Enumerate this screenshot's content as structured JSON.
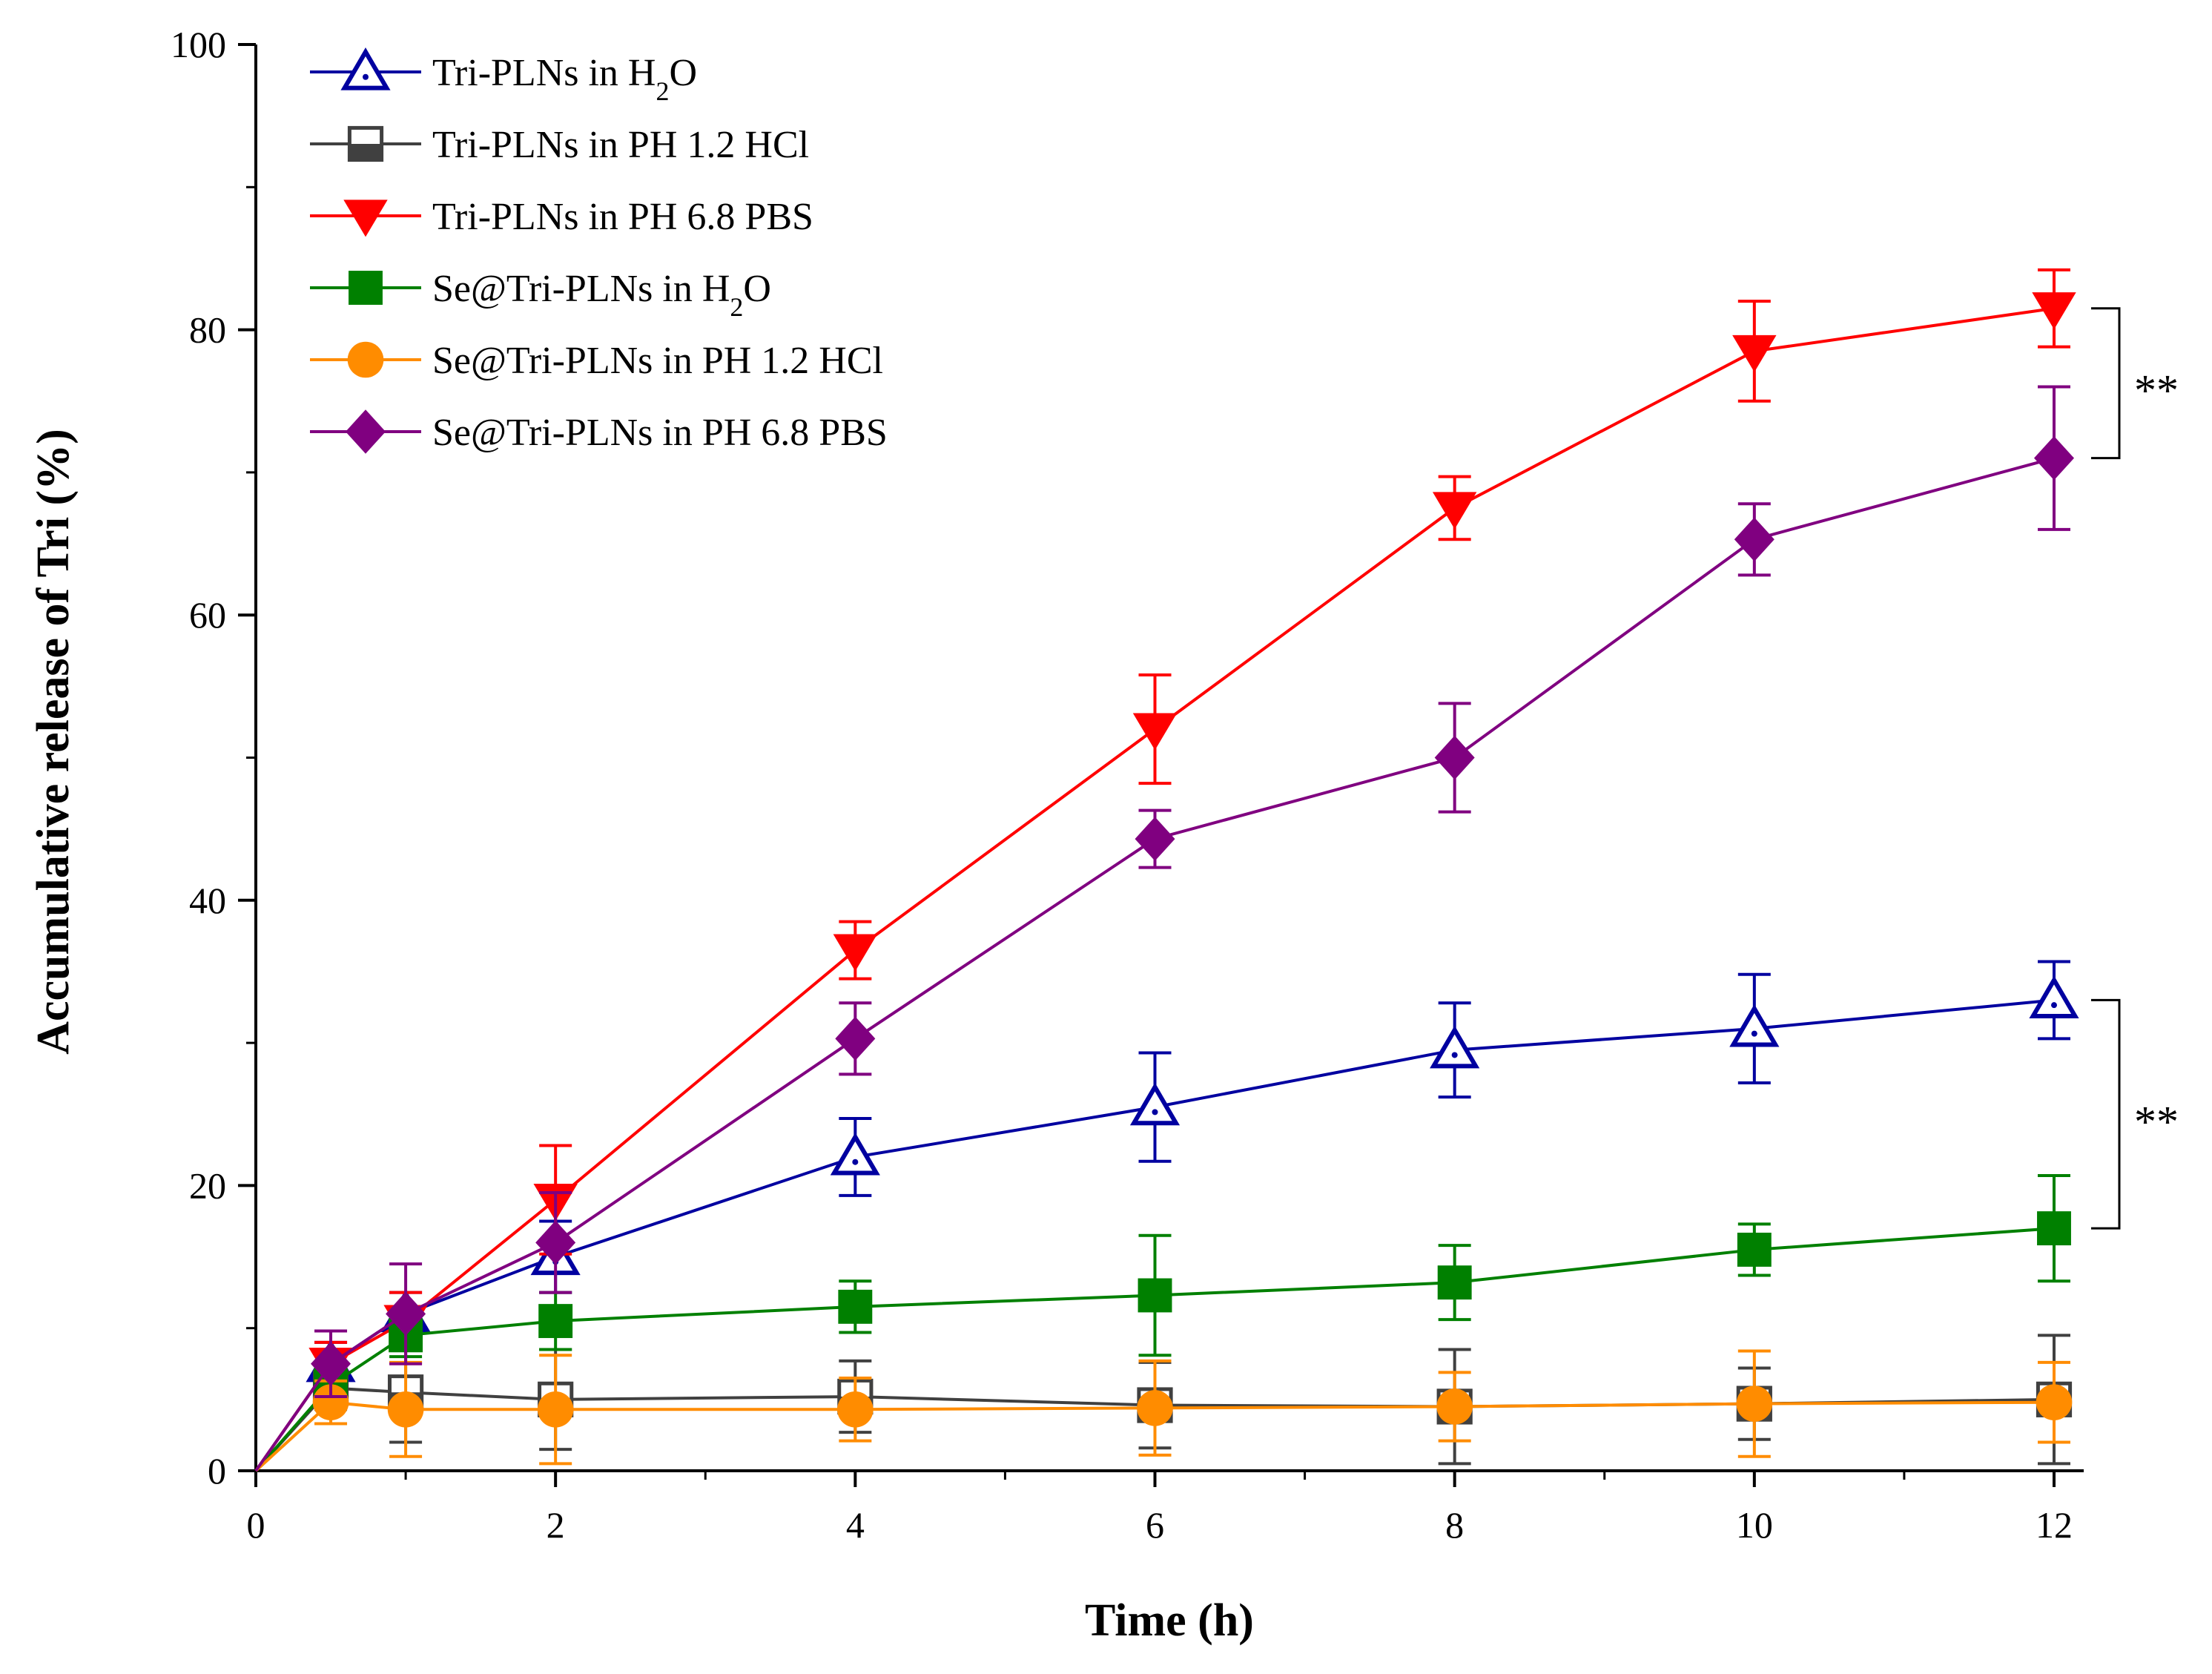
{
  "chart_data": {
    "type": "line",
    "title": "",
    "xlabel": "Time (h)",
    "ylabel": "Accumulative release of Tri (%)",
    "xlim": [
      0,
      12.2
    ],
    "ylim": [
      0,
      100
    ],
    "x_ticks": [
      0,
      2,
      4,
      6,
      8,
      10,
      12
    ],
    "x_tick_labels": [
      "0",
      "2",
      "4",
      "6",
      "8",
      "10",
      "12"
    ],
    "y_ticks": [
      0,
      20,
      40,
      60,
      80,
      100
    ],
    "y_tick_labels": [
      "0",
      "20",
      "40",
      "60",
      "80",
      "100"
    ],
    "grid": false,
    "legend_position": "top-left",
    "x": [
      0,
      0.5,
      1,
      2,
      4,
      6,
      8,
      10,
      12
    ],
    "series": [
      {
        "name": "Tri-PLNs in H₂O",
        "legend_parts": [
          "Tri-PLNs in H",
          "2",
          "O"
        ],
        "color": "#0000a0",
        "marker": "triangle-up-open",
        "values": [
          0,
          7.5,
          11,
          15,
          22,
          25.5,
          29.5,
          31,
          33
        ],
        "errors": [
          0,
          1.5,
          1.5,
          2.5,
          2.7,
          3.8,
          3.3,
          3.8,
          2.7
        ]
      },
      {
        "name": "Tri-PLNs in PH 1.2 HCl",
        "legend_parts": [
          "Tri-PLNs in PH 1.2 HCl",
          "",
          ""
        ],
        "color": "#404040",
        "marker": "square-half",
        "values": [
          0,
          5.8,
          5.5,
          5,
          5.2,
          4.6,
          4.5,
          4.7,
          5
        ],
        "errors": [
          0,
          1.5,
          3.5,
          3.5,
          2.5,
          3.0,
          4.0,
          2.5,
          4.5
        ]
      },
      {
        "name": "Tri-PLNs in PH 6.8 PBS",
        "legend_parts": [
          "Tri-PLNs in PH 6.8 PBS",
          "",
          ""
        ],
        "color": "#ff0000",
        "marker": "triangle-down",
        "values": [
          0,
          7.5,
          10.5,
          19,
          36.5,
          52,
          67.5,
          78.5,
          81.5
        ],
        "errors": [
          0,
          1.5,
          2.0,
          3.8,
          2.0,
          3.8,
          2.2,
          3.5,
          2.7
        ]
      },
      {
        "name": "Se@Tri-PLNs in H₂O",
        "legend_parts": [
          "Se@Tri-PLNs in H",
          "2",
          "O"
        ],
        "color": "#008000",
        "marker": "square",
        "values": [
          0,
          6,
          9.5,
          10.5,
          11.5,
          12.3,
          13.2,
          15.5,
          17
        ],
        "errors": [
          0,
          1.2,
          1.5,
          2.0,
          1.8,
          4.2,
          2.6,
          1.8,
          3.7
        ]
      },
      {
        "name": "Se@Tri-PLNs in PH 1.2 HCl",
        "legend_parts": [
          "Se@Tri-PLNs in PH 1.2 HCl",
          "",
          ""
        ],
        "color": "#ff8c00",
        "marker": "circle",
        "values": [
          0,
          4.8,
          4.3,
          4.3,
          4.3,
          4.4,
          4.5,
          4.7,
          4.8
        ],
        "errors": [
          0,
          1.5,
          3.3,
          3.8,
          2.2,
          3.3,
          2.4,
          3.7,
          2.8
        ]
      },
      {
        "name": "Se@Tri-PLNs in PH 6.8 PBS",
        "legend_parts": [
          "Se@Tri-PLNs in PH 6.8 PBS",
          "",
          ""
        ],
        "color": "#800080",
        "marker": "diamond",
        "values": [
          0,
          7.5,
          11,
          16,
          30.3,
          44.3,
          50,
          65.3,
          71
        ],
        "errors": [
          0,
          2.3,
          3.5,
          3.5,
          2.5,
          2.0,
          3.8,
          2.5,
          5.0
        ]
      }
    ],
    "annotations": [
      {
        "label": "**",
        "between": [
          "Tri-PLNs in PH 6.8 PBS",
          "Se@Tri-PLNs in PH 6.8 PBS"
        ],
        "at_x": 12,
        "y_top": 81.5,
        "y_bottom": 71
      },
      {
        "label": "**",
        "between": [
          "Tri-PLNs in H₂O",
          "Se@Tri-PLNs in H₂O"
        ],
        "at_x": 12,
        "y_top": 33,
        "y_bottom": 17
      }
    ]
  }
}
